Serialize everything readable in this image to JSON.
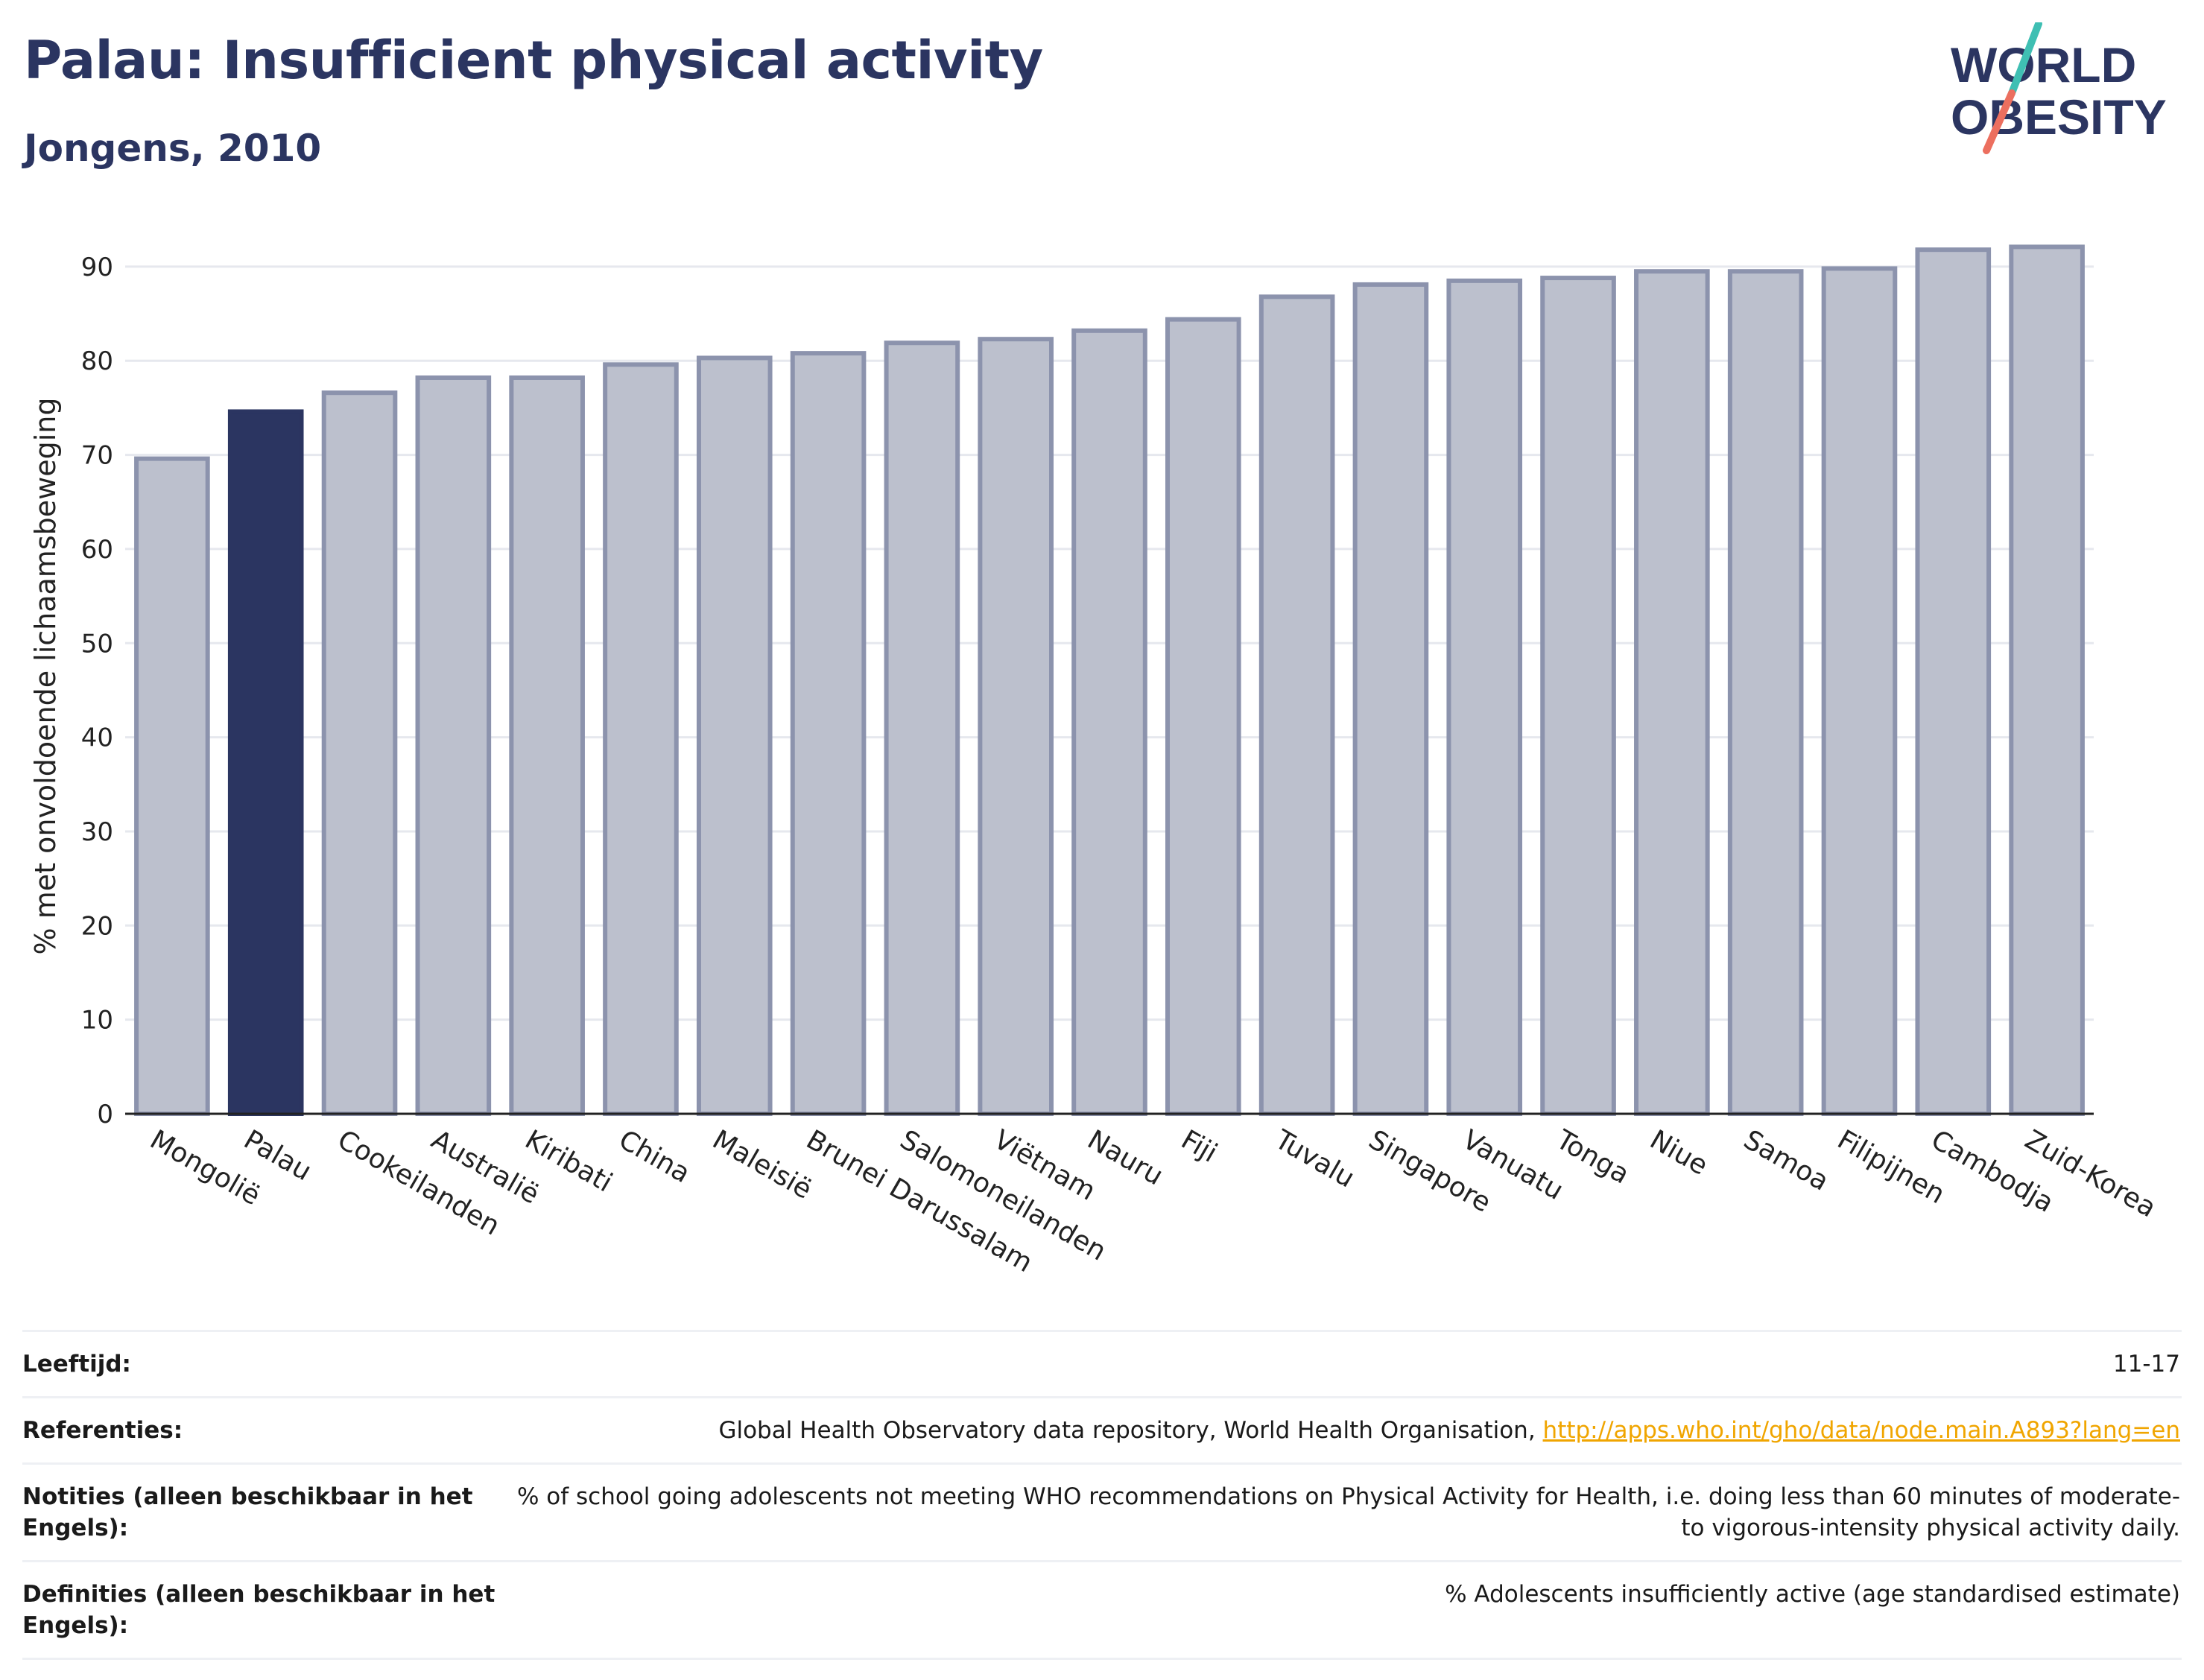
{
  "header": {
    "title": "Palau: Insufficient physical activity",
    "subtitle": "Jongens, 2010"
  },
  "logo": {
    "line1": "WORLD",
    "line2": "OBESITY",
    "colors": {
      "text": "#2b3561",
      "slash_top": "#3fbfb3",
      "slash_bottom": "#ec6f5f"
    }
  },
  "colors": {
    "highlight": "#2b3561",
    "bar_fill": "#bcc0cd",
    "bar_stroke": "#8c93ad",
    "grid": "#e6e8ee",
    "link": "#f0a500"
  },
  "chart_data": {
    "type": "bar",
    "ylabel": "% met onvoldoende lichaamsbeweging",
    "ylim": [
      0,
      93
    ],
    "yticks": [
      0,
      10,
      20,
      30,
      40,
      50,
      60,
      70,
      80,
      90
    ],
    "grid": true,
    "highlight": "Palau",
    "categories": [
      "Mongolië",
      "Palau",
      "Cookeilanden",
      "Australië",
      "Kiribati",
      "China",
      "Maleisië",
      "Brunei Darussalam",
      "Salomoneilanden",
      "Viëtnam",
      "Nauru",
      "Fiji",
      "Tuvalu",
      "Singapore",
      "Vanuatu",
      "Tonga",
      "Niue",
      "Samoa",
      "Filipijnen",
      "Cambodja",
      "Zuid-Korea"
    ],
    "values": [
      69.6,
      74.6,
      76.6,
      78.2,
      78.2,
      79.6,
      80.3,
      80.8,
      81.9,
      82.3,
      83.2,
      84.4,
      86.8,
      88.1,
      88.5,
      88.8,
      89.5,
      89.5,
      89.8,
      91.8,
      92.1
    ]
  },
  "meta": {
    "rows": [
      {
        "label": "Leeftijd:",
        "value": "11-17"
      },
      {
        "label": "Referenties:",
        "value": "Global Health Observatory data repository, World Health Organisation,",
        "link": "http://apps.who.int/gho/data/node.main.A893?lang=en"
      },
      {
        "label": "Notities (alleen beschikbaar in het Engels):",
        "value": "% of school going adolescents not meeting WHO recommendations on Physical Activity for Health, i.e. doing less than 60 minutes of moderate- to vigorous-intensity physical activity daily."
      },
      {
        "label": "Definities (alleen beschikbaar in het Engels):",
        "value": "% Adolescents insufficiently active (age standardised estimate)"
      }
    ]
  }
}
